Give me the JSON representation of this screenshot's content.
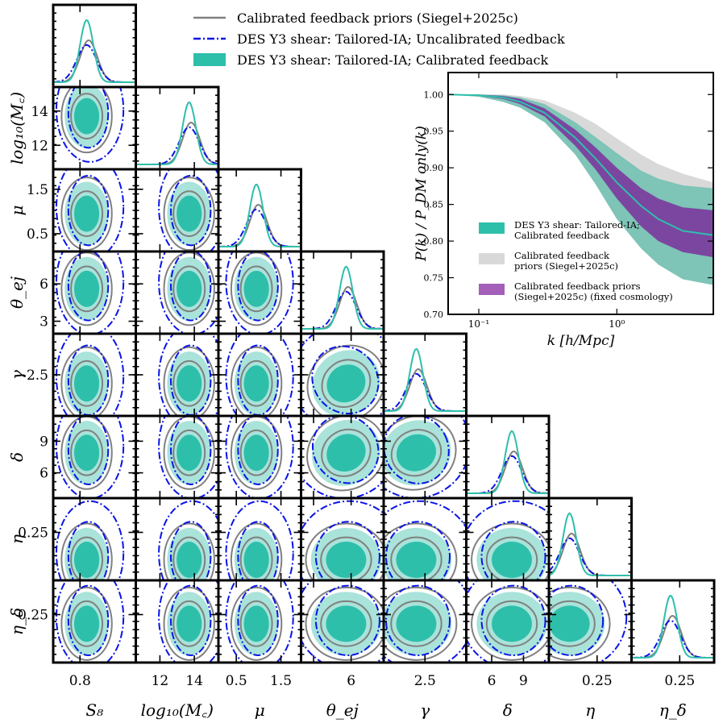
{
  "chart_data": [
    {
      "type": "corner",
      "title": "",
      "parameters": [
        {
          "name": "S_8",
          "label": "S₈",
          "ticks": [
            0.8
          ],
          "tick_labels": [
            "0.8"
          ],
          "range": [
            0.68,
            1.05
          ]
        },
        {
          "name": "log10_Mc",
          "label": "log₁₀(M꜀)",
          "ticks": [
            12,
            14
          ],
          "tick_labels": [
            "12",
            "14"
          ],
          "range": [
            10.6,
            15.4
          ]
        },
        {
          "name": "mu",
          "label": "μ",
          "ticks": [
            0.5,
            1.5
          ],
          "tick_labels": [
            "0.5",
            "1.5"
          ],
          "range": [
            0.1,
            1.95
          ]
        },
        {
          "name": "theta_ej",
          "label": "θ_ej",
          "ticks": [
            3,
            6
          ],
          "tick_labels": [
            "3",
            "6"
          ],
          "range": [
            2.0,
            8.6
          ],
          "y_tick_labels": [
            "3",
            "6"
          ],
          "x_tick_labels": [
            "",
            "6"
          ]
        },
        {
          "name": "gamma",
          "label": "γ",
          "ticks": [
            2.5
          ],
          "tick_labels": [
            "2.5"
          ],
          "range": [
            0.6,
            4.4
          ]
        },
        {
          "name": "delta",
          "label": "δ",
          "ticks": [
            6,
            9
          ],
          "tick_labels": [
            "6",
            "9"
          ],
          "range": [
            3.6,
            11.4
          ]
        },
        {
          "name": "eta",
          "label": "η",
          "ticks": [
            0.25
          ],
          "tick_labels": [
            "0.25"
          ],
          "range": [
            0.04,
            0.4
          ]
        },
        {
          "name": "eta_delta",
          "label": "η_δ",
          "ticks": [
            0.25
          ],
          "tick_labels": [
            "0.25"
          ],
          "range": [
            0.04,
            0.4
          ]
        }
      ],
      "series": [
        {
          "name": "Calibrated feedback priors (Siegel+2025c)",
          "color": "#808080",
          "style": "solid"
        },
        {
          "name": "DES Y3 shear: Tailored-IA; Uncalibrated feedback",
          "color": "#0a14e6",
          "style": "dashdot"
        },
        {
          "name": "DES Y3 shear: Tailored-IA; Calibrated feedback",
          "color": "#2ebfab",
          "style": "filled"
        }
      ],
      "posterior_means": {
        "S_8": 0.83,
        "log10_Mc": 13.7,
        "mu": 0.95,
        "theta_ej": 5.6,
        "gamma": 2.1,
        "delta": 7.9,
        "eta": 0.13,
        "eta_delta": 0.21
      }
    },
    {
      "type": "line",
      "title": "",
      "xlabel": "k  [h/Mpc]",
      "ylabel": "P(k) / P_DM only(k)",
      "xscale": "log",
      "xlim": [
        0.06,
        5.0
      ],
      "ylim": [
        0.7,
        1.03
      ],
      "xticks": [
        0.1,
        1
      ],
      "xtick_labels": [
        "10⁻¹",
        "10⁰"
      ],
      "yticks": [
        0.7,
        0.75,
        0.8,
        0.85,
        0.9,
        0.95,
        1.0
      ],
      "ytick_labels": [
        "0.70",
        "0.75",
        "0.80",
        "0.85",
        "0.90",
        "0.95",
        "1.00"
      ],
      "k": [
        0.06,
        0.1,
        0.15,
        0.2,
        0.3,
        0.5,
        0.7,
        1.0,
        1.5,
        2.0,
        3.0,
        5.0
      ],
      "series": [
        {
          "name": "DES Y3 shear: Tailored-IA; Calibrated feedback",
          "color": "#2ebfab",
          "mean": [
            1.0,
            0.999,
            0.996,
            0.99,
            0.975,
            0.941,
            0.913,
            0.88,
            0.848,
            0.83,
            0.814,
            0.808
          ],
          "lower": [
            1.0,
            0.997,
            0.99,
            0.982,
            0.962,
            0.918,
            0.878,
            0.83,
            0.79,
            0.768,
            0.748,
            0.74
          ],
          "upper": [
            1.0,
            1.0,
            0.999,
            0.996,
            0.987,
            0.962,
            0.942,
            0.92,
            0.896,
            0.885,
            0.876,
            0.872
          ]
        },
        {
          "name": "Calibrated feedback priors (Siegel+2025c)",
          "color": "#d9d9d9",
          "lower": [
            1.0,
            0.997,
            0.99,
            0.982,
            0.962,
            0.918,
            0.878,
            0.83,
            0.79,
            0.768,
            0.748,
            0.74
          ],
          "upper": [
            1.0,
            1.0,
            1.0,
            0.998,
            0.992,
            0.975,
            0.96,
            0.94,
            0.918,
            0.905,
            0.892,
            0.88
          ]
        },
        {
          "name": "Calibrated feedback priors (Siegel+2025c) (fixed cosmology)",
          "color": "#7b3f9e",
          "lower": [
            1.0,
            0.998,
            0.994,
            0.987,
            0.97,
            0.93,
            0.898,
            0.858,
            0.82,
            0.8,
            0.785,
            0.778
          ],
          "upper": [
            1.0,
            1.0,
            0.998,
            0.994,
            0.981,
            0.952,
            0.928,
            0.9,
            0.872,
            0.858,
            0.846,
            0.842
          ]
        }
      ],
      "legend": [
        "DES Y3 shear: Tailored-IA; Calibrated feedback",
        "Calibrated feedback priors (Siegel+2025c)",
        "Calibrated feedback priors (Siegel+2025c) (fixed cosmology)"
      ],
      "legend_position": "lower-left"
    }
  ],
  "legend": {
    "items": [
      {
        "label": "Calibrated feedback priors (Siegel+2025c)",
        "kind": "line",
        "color": "#808080"
      },
      {
        "label": "DES Y3 shear: Tailored-IA; Uncalibrated feedback",
        "kind": "dashdot",
        "color": "#0a14e6"
      },
      {
        "label": "DES Y3 shear: Tailored-IA; Calibrated feedback",
        "kind": "patch",
        "color": "#2ebfab"
      }
    ]
  },
  "inset_legend": {
    "items": [
      {
        "lines": [
          "DES Y3 shear: Tailored-IA;",
          "Calibrated feedback"
        ],
        "color": "#2ebfab"
      },
      {
        "lines": [
          "Calibrated feedback",
          "priors (Siegel+2025c)"
        ],
        "color": "#d9d9d9"
      },
      {
        "lines": [
          "Calibrated feedback priors",
          "(Siegel+2025c) (fixed cosmology)"
        ],
        "color": "#a45fb8"
      }
    ]
  }
}
